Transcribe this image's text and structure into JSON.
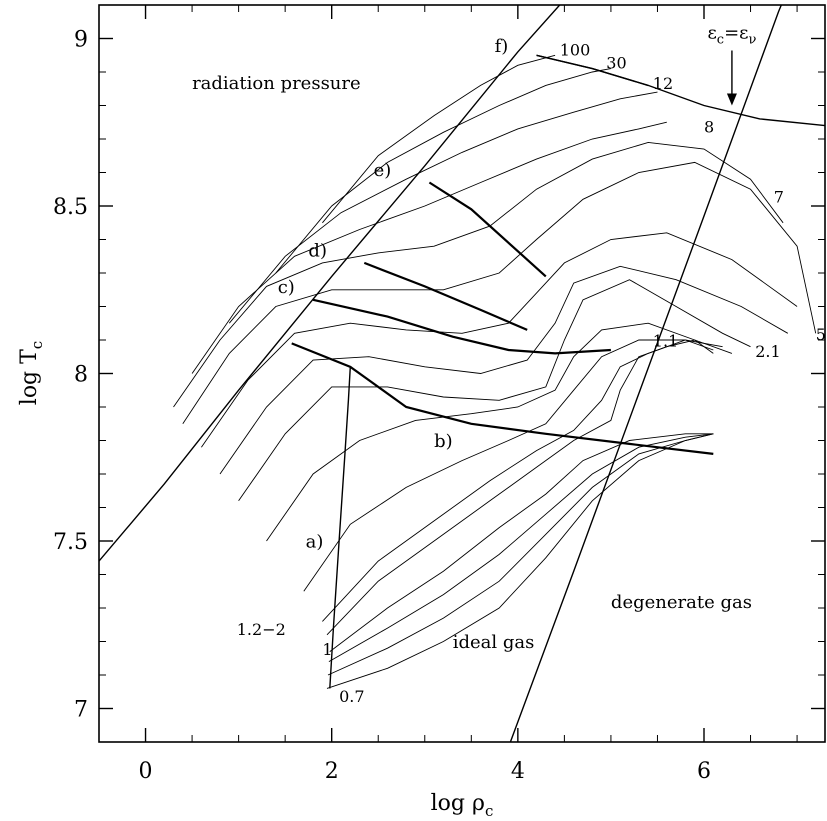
{
  "chart_data": {
    "type": "line",
    "title": "",
    "xlabel": "log ρ",
    "xlabel_sub": "c",
    "ylabel": "log T",
    "ylabel_sub": "c",
    "xlim": [
      -0.5,
      7.3
    ],
    "ylim": [
      6.9,
      9.1
    ],
    "xticks": [
      0,
      2,
      4,
      6
    ],
    "xtick_labels": [
      "0",
      "2",
      "4",
      "6"
    ],
    "yticks": [
      7,
      7.5,
      8,
      8.5,
      9
    ],
    "ytick_labels": [
      "7",
      "7.5",
      "8",
      "8.5",
      "9"
    ],
    "grid": false,
    "legend": "none",
    "region_labels": [
      {
        "text": "radiation pressure",
        "x": 0.5,
        "y": 8.85
      },
      {
        "text": "ideal gas",
        "x": 3.3,
        "y": 7.18
      },
      {
        "text": "degenerate gas",
        "x": 5.0,
        "y": 7.3
      }
    ],
    "phase_labels": [
      {
        "text": "a)",
        "x": 1.72,
        "y": 7.48
      },
      {
        "text": "b)",
        "x": 3.1,
        "y": 7.78
      },
      {
        "text": "c)",
        "x": 1.42,
        "y": 8.24
      },
      {
        "text": "d)",
        "x": 1.75,
        "y": 8.35
      },
      {
        "text": "e)",
        "x": 2.45,
        "y": 8.59
      },
      {
        "text": "f)",
        "x": 3.75,
        "y": 8.96
      }
    ],
    "mass_labels": [
      {
        "text": "100",
        "x": 4.45,
        "y": 8.95
      },
      {
        "text": "30",
        "x": 4.95,
        "y": 8.91
      },
      {
        "text": "12",
        "x": 5.45,
        "y": 8.85
      },
      {
        "text": "8",
        "x": 6.0,
        "y": 8.72
      },
      {
        "text": "7",
        "x": 6.75,
        "y": 8.51
      },
      {
        "text": "5",
        "x": 7.2,
        "y": 8.1
      },
      {
        "text": "2.1",
        "x": 6.55,
        "y": 8.05
      },
      {
        "text": "1.1",
        "x": 5.45,
        "y": 8.08
      },
      {
        "text": "1.2−2",
        "x": 0.98,
        "y": 7.22
      },
      {
        "text": "1",
        "x": 1.9,
        "y": 7.16
      },
      {
        "text": "0.7",
        "x": 2.08,
        "y": 7.02
      }
    ],
    "neutrino_label": {
      "text": "ε",
      "sub_left": "c",
      "equals": "=",
      "text_right": "ε",
      "sub_right": "ν",
      "x": 6.3,
      "y": 9.0,
      "arrow_to": [
        6.3,
        8.8
      ]
    },
    "boundaries": [
      {
        "name": "radiation pressure boundary",
        "points": [
          [
            -0.5,
            7.44
          ],
          [
            0.2,
            7.67
          ],
          [
            1.0,
            7.95
          ],
          [
            2.0,
            8.29
          ],
          [
            3.0,
            8.62
          ],
          [
            4.0,
            8.96
          ],
          [
            4.45,
            9.1
          ]
        ]
      },
      {
        "name": "degeneracy boundary",
        "points": [
          [
            3.92,
            6.9
          ],
          [
            4.6,
            7.41
          ],
          [
            5.3,
            7.94
          ],
          [
            6.0,
            8.47
          ],
          [
            6.8,
            9.08
          ],
          [
            6.83,
            9.1
          ]
        ]
      },
      {
        "name": "epsilon_c = epsilon_nu",
        "points": [
          [
            4.2,
            8.95
          ],
          [
            4.8,
            8.91
          ],
          [
            5.4,
            8.86
          ],
          [
            6.0,
            8.8
          ],
          [
            6.6,
            8.76
          ],
          [
            7.3,
            8.74
          ]
        ]
      },
      {
        "name": "a) zero-age main sequence",
        "points": [
          [
            1.98,
            7.06
          ],
          [
            2.02,
            7.25
          ],
          [
            2.08,
            7.5
          ],
          [
            2.14,
            7.75
          ],
          [
            2.18,
            7.92
          ],
          [
            2.2,
            8.02
          ]
        ]
      },
      {
        "name": "b) end of core H burning",
        "points": [
          [
            1.57,
            8.09
          ],
          [
            2.2,
            8.02
          ],
          [
            2.8,
            7.9
          ],
          [
            3.5,
            7.85
          ],
          [
            4.3,
            7.82
          ],
          [
            5.2,
            7.79
          ],
          [
            6.1,
            7.76
          ]
        ]
      },
      {
        "name": "c) core He ignition",
        "points": [
          [
            1.8,
            8.22
          ],
          [
            2.6,
            8.17
          ],
          [
            3.3,
            8.11
          ],
          [
            3.9,
            8.07
          ],
          [
            4.4,
            8.06
          ],
          [
            5.0,
            8.07
          ]
        ]
      },
      {
        "name": "d) end of core He burning",
        "points": [
          [
            2.35,
            8.33
          ],
          [
            3.0,
            8.26
          ],
          [
            3.6,
            8.19
          ],
          [
            4.1,
            8.13
          ]
        ]
      },
      {
        "name": "e) core C ignition",
        "points": [
          [
            3.05,
            8.57
          ],
          [
            3.5,
            8.49
          ],
          [
            3.9,
            8.39
          ],
          [
            4.3,
            8.29
          ]
        ]
      },
      {
        "name": "f) core Ne ignition",
        "points": [
          [
            4.2,
            8.95
          ],
          [
            4.8,
            8.91
          ],
          [
            5.4,
            8.86
          ]
        ]
      }
    ],
    "tracks": [
      {
        "mass": 0.7,
        "points": [
          [
            1.95,
            7.06
          ],
          [
            2.6,
            7.12
          ],
          [
            3.2,
            7.2
          ],
          [
            3.8,
            7.3
          ],
          [
            4.3,
            7.45
          ],
          [
            4.8,
            7.62
          ],
          [
            5.3,
            7.74
          ],
          [
            5.8,
            7.8
          ],
          [
            6.1,
            7.82
          ]
        ]
      },
      {
        "mass": 0.8,
        "points": [
          [
            1.96,
            7.1
          ],
          [
            2.6,
            7.18
          ],
          [
            3.2,
            7.27
          ],
          [
            3.8,
            7.38
          ],
          [
            4.3,
            7.52
          ],
          [
            4.8,
            7.66
          ],
          [
            5.3,
            7.76
          ],
          [
            5.8,
            7.8
          ],
          [
            6.1,
            7.82
          ]
        ]
      },
      {
        "mass": 0.9,
        "points": [
          [
            1.97,
            7.14
          ],
          [
            2.6,
            7.24
          ],
          [
            3.2,
            7.34
          ],
          [
            3.8,
            7.46
          ],
          [
            4.3,
            7.58
          ],
          [
            4.8,
            7.7
          ],
          [
            5.3,
            7.78
          ],
          [
            5.8,
            7.81
          ],
          [
            6.1,
            7.82
          ]
        ]
      },
      {
        "mass": 1.0,
        "points": [
          [
            1.98,
            7.17
          ],
          [
            2.6,
            7.3
          ],
          [
            3.2,
            7.41
          ],
          [
            3.8,
            7.54
          ],
          [
            4.3,
            7.64
          ],
          [
            4.7,
            7.74
          ],
          [
            5.2,
            7.8
          ],
          [
            5.8,
            7.82
          ],
          [
            6.1,
            7.82
          ]
        ]
      },
      {
        "mass": 1.1,
        "points": [
          [
            1.95,
            7.22
          ],
          [
            2.5,
            7.38
          ],
          [
            3.1,
            7.5
          ],
          [
            3.7,
            7.62
          ],
          [
            4.2,
            7.72
          ],
          [
            4.6,
            7.8
          ],
          [
            5.0,
            7.86
          ],
          [
            5.1,
            7.95
          ],
          [
            5.3,
            8.05
          ],
          [
            5.6,
            8.08
          ],
          [
            5.9,
            8.1
          ],
          [
            6.1,
            8.06
          ]
        ]
      },
      {
        "mass": 1.2,
        "points": [
          [
            1.9,
            7.26
          ],
          [
            2.5,
            7.44
          ],
          [
            3.1,
            7.56
          ],
          [
            3.7,
            7.68
          ],
          [
            4.2,
            7.77
          ],
          [
            4.6,
            7.83
          ],
          [
            4.9,
            7.92
          ],
          [
            5.1,
            8.02
          ],
          [
            5.4,
            8.06
          ],
          [
            5.8,
            8.1
          ],
          [
            6.1,
            8.07
          ]
        ]
      },
      {
        "mass": 1.5,
        "points": [
          [
            1.7,
            7.35
          ],
          [
            2.2,
            7.55
          ],
          [
            2.8,
            7.66
          ],
          [
            3.4,
            7.74
          ],
          [
            3.9,
            7.8
          ],
          [
            4.3,
            7.85
          ],
          [
            4.6,
            7.95
          ],
          [
            4.9,
            8.05
          ],
          [
            5.3,
            8.1
          ],
          [
            5.8,
            8.1
          ],
          [
            6.2,
            8.08
          ]
        ]
      },
      {
        "mass": 1.8,
        "points": [
          [
            1.3,
            7.5
          ],
          [
            1.8,
            7.7
          ],
          [
            2.3,
            7.8
          ],
          [
            2.9,
            7.86
          ],
          [
            3.5,
            7.88
          ],
          [
            4.0,
            7.9
          ],
          [
            4.4,
            7.95
          ],
          [
            4.6,
            8.05
          ],
          [
            4.9,
            8.13
          ],
          [
            5.4,
            8.15
          ],
          [
            5.9,
            8.1
          ],
          [
            6.3,
            8.06
          ]
        ]
      },
      {
        "mass": 2.1,
        "points": [
          [
            1.0,
            7.62
          ],
          [
            1.5,
            7.82
          ],
          [
            2.0,
            7.96
          ],
          [
            2.6,
            7.96
          ],
          [
            3.2,
            7.93
          ],
          [
            3.8,
            7.92
          ],
          [
            4.3,
            7.96
          ],
          [
            4.5,
            8.1
          ],
          [
            4.7,
            8.22
          ],
          [
            5.2,
            8.28
          ],
          [
            5.7,
            8.2
          ],
          [
            6.2,
            8.12
          ],
          [
            6.5,
            8.08
          ]
        ]
      },
      {
        "mass": 2.5,
        "points": [
          [
            0.8,
            7.7
          ],
          [
            1.3,
            7.9
          ],
          [
            1.8,
            8.04
          ],
          [
            2.4,
            8.05
          ],
          [
            3.0,
            8.02
          ],
          [
            3.6,
            8.0
          ],
          [
            4.1,
            8.04
          ],
          [
            4.4,
            8.15
          ],
          [
            4.6,
            8.27
          ],
          [
            5.1,
            8.32
          ],
          [
            5.7,
            8.28
          ],
          [
            6.4,
            8.2
          ],
          [
            6.9,
            8.12
          ]
        ]
      },
      {
        "mass": 3,
        "points": [
          [
            0.6,
            7.78
          ],
          [
            1.1,
            7.98
          ],
          [
            1.6,
            8.12
          ],
          [
            2.2,
            8.15
          ],
          [
            2.8,
            8.13
          ],
          [
            3.4,
            8.12
          ],
          [
            3.9,
            8.15
          ],
          [
            4.2,
            8.24
          ],
          [
            4.5,
            8.33
          ],
          [
            5.0,
            8.4
          ],
          [
            5.6,
            8.42
          ],
          [
            6.3,
            8.34
          ],
          [
            7.0,
            8.2
          ]
        ]
      },
      {
        "mass": 5,
        "points": [
          [
            0.4,
            7.85
          ],
          [
            0.9,
            8.06
          ],
          [
            1.4,
            8.2
          ],
          [
            2.0,
            8.25
          ],
          [
            2.6,
            8.25
          ],
          [
            3.2,
            8.25
          ],
          [
            3.8,
            8.3
          ],
          [
            4.2,
            8.4
          ],
          [
            4.7,
            8.52
          ],
          [
            5.3,
            8.6
          ],
          [
            5.9,
            8.63
          ],
          [
            6.5,
            8.55
          ],
          [
            7.0,
            8.38
          ],
          [
            7.2,
            8.12
          ]
        ]
      },
      {
        "mass": 7,
        "points": [
          [
            0.3,
            7.9
          ],
          [
            0.8,
            8.1
          ],
          [
            1.3,
            8.26
          ],
          [
            1.9,
            8.33
          ],
          [
            2.5,
            8.36
          ],
          [
            3.1,
            8.38
          ],
          [
            3.7,
            8.44
          ],
          [
            4.2,
            8.55
          ],
          [
            4.8,
            8.64
          ],
          [
            5.4,
            8.69
          ],
          [
            6.0,
            8.67
          ],
          [
            6.5,
            8.58
          ],
          [
            6.85,
            8.45
          ]
        ]
      },
      {
        "mass": 8,
        "points": [
          [
            0.5,
            8.0
          ],
          [
            1.0,
            8.2
          ],
          [
            1.6,
            8.35
          ],
          [
            2.3,
            8.43
          ],
          [
            3.0,
            8.5
          ],
          [
            3.6,
            8.57
          ],
          [
            4.2,
            8.64
          ],
          [
            4.8,
            8.7
          ],
          [
            5.3,
            8.73
          ],
          [
            5.6,
            8.75
          ]
        ]
      },
      {
        "mass": 12,
        "points": [
          [
            0.9,
            8.15
          ],
          [
            1.5,
            8.35
          ],
          [
            2.1,
            8.48
          ],
          [
            2.8,
            8.58
          ],
          [
            3.4,
            8.66
          ],
          [
            4.0,
            8.73
          ],
          [
            4.6,
            8.78
          ],
          [
            5.1,
            8.82
          ],
          [
            5.5,
            8.84
          ]
        ]
      },
      {
        "mass": 30,
        "points": [
          [
            1.4,
            8.3
          ],
          [
            2.0,
            8.5
          ],
          [
            2.6,
            8.63
          ],
          [
            3.2,
            8.72
          ],
          [
            3.8,
            8.8
          ],
          [
            4.3,
            8.86
          ],
          [
            4.8,
            8.9
          ],
          [
            5.0,
            8.91
          ]
        ]
      },
      {
        "mass": 100,
        "points": [
          [
            1.9,
            8.45
          ],
          [
            2.5,
            8.65
          ],
          [
            3.1,
            8.77
          ],
          [
            3.6,
            8.86
          ],
          [
            4.0,
            8.92
          ],
          [
            4.4,
            8.95
          ]
        ]
      }
    ]
  }
}
